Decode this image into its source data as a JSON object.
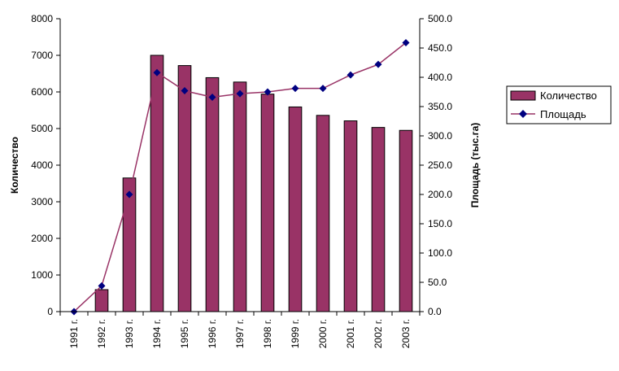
{
  "chart_data": {
    "type": "bar",
    "categories": [
      "1991 г.",
      "1992 г.",
      "1993 г.",
      "1994 г.",
      "1995 г.",
      "1996 г.",
      "1997 г.",
      "1998 г.",
      "1999 г.",
      "2000 г.",
      "2001 г.",
      "2002 г.",
      "2003 г."
    ],
    "series": [
      {
        "name": "Количество",
        "type": "bar",
        "axis": "left",
        "color": "#993366",
        "values": [
          0,
          600,
          3650,
          7000,
          6720,
          6390,
          6270,
          5940,
          5590,
          5360,
          5210,
          5030,
          4950
        ]
      },
      {
        "name": "Площадь",
        "type": "line",
        "axis": "right",
        "color": "#993366",
        "marker_color": "#000080",
        "marker": "diamond",
        "values": [
          0,
          44,
          200,
          408,
          377,
          366,
          372,
          375,
          381,
          381,
          404,
          422,
          459
        ]
      }
    ],
    "left_axis": {
      "label": "Количество",
      "min": 0,
      "max": 8000,
      "ticks": [
        "0",
        "1000",
        "2000",
        "3000",
        "4000",
        "5000",
        "6000",
        "7000",
        "8000"
      ]
    },
    "right_axis": {
      "label": "Площадь (тыс.га)",
      "min": 0,
      "max": 500,
      "ticks": [
        "0.0",
        "50.0",
        "100.0",
        "150.0",
        "200.0",
        "250.0",
        "300.0",
        "350.0",
        "400.0",
        "450.0",
        "500.0"
      ]
    },
    "grid": false,
    "legend": {
      "placement": "right"
    }
  }
}
